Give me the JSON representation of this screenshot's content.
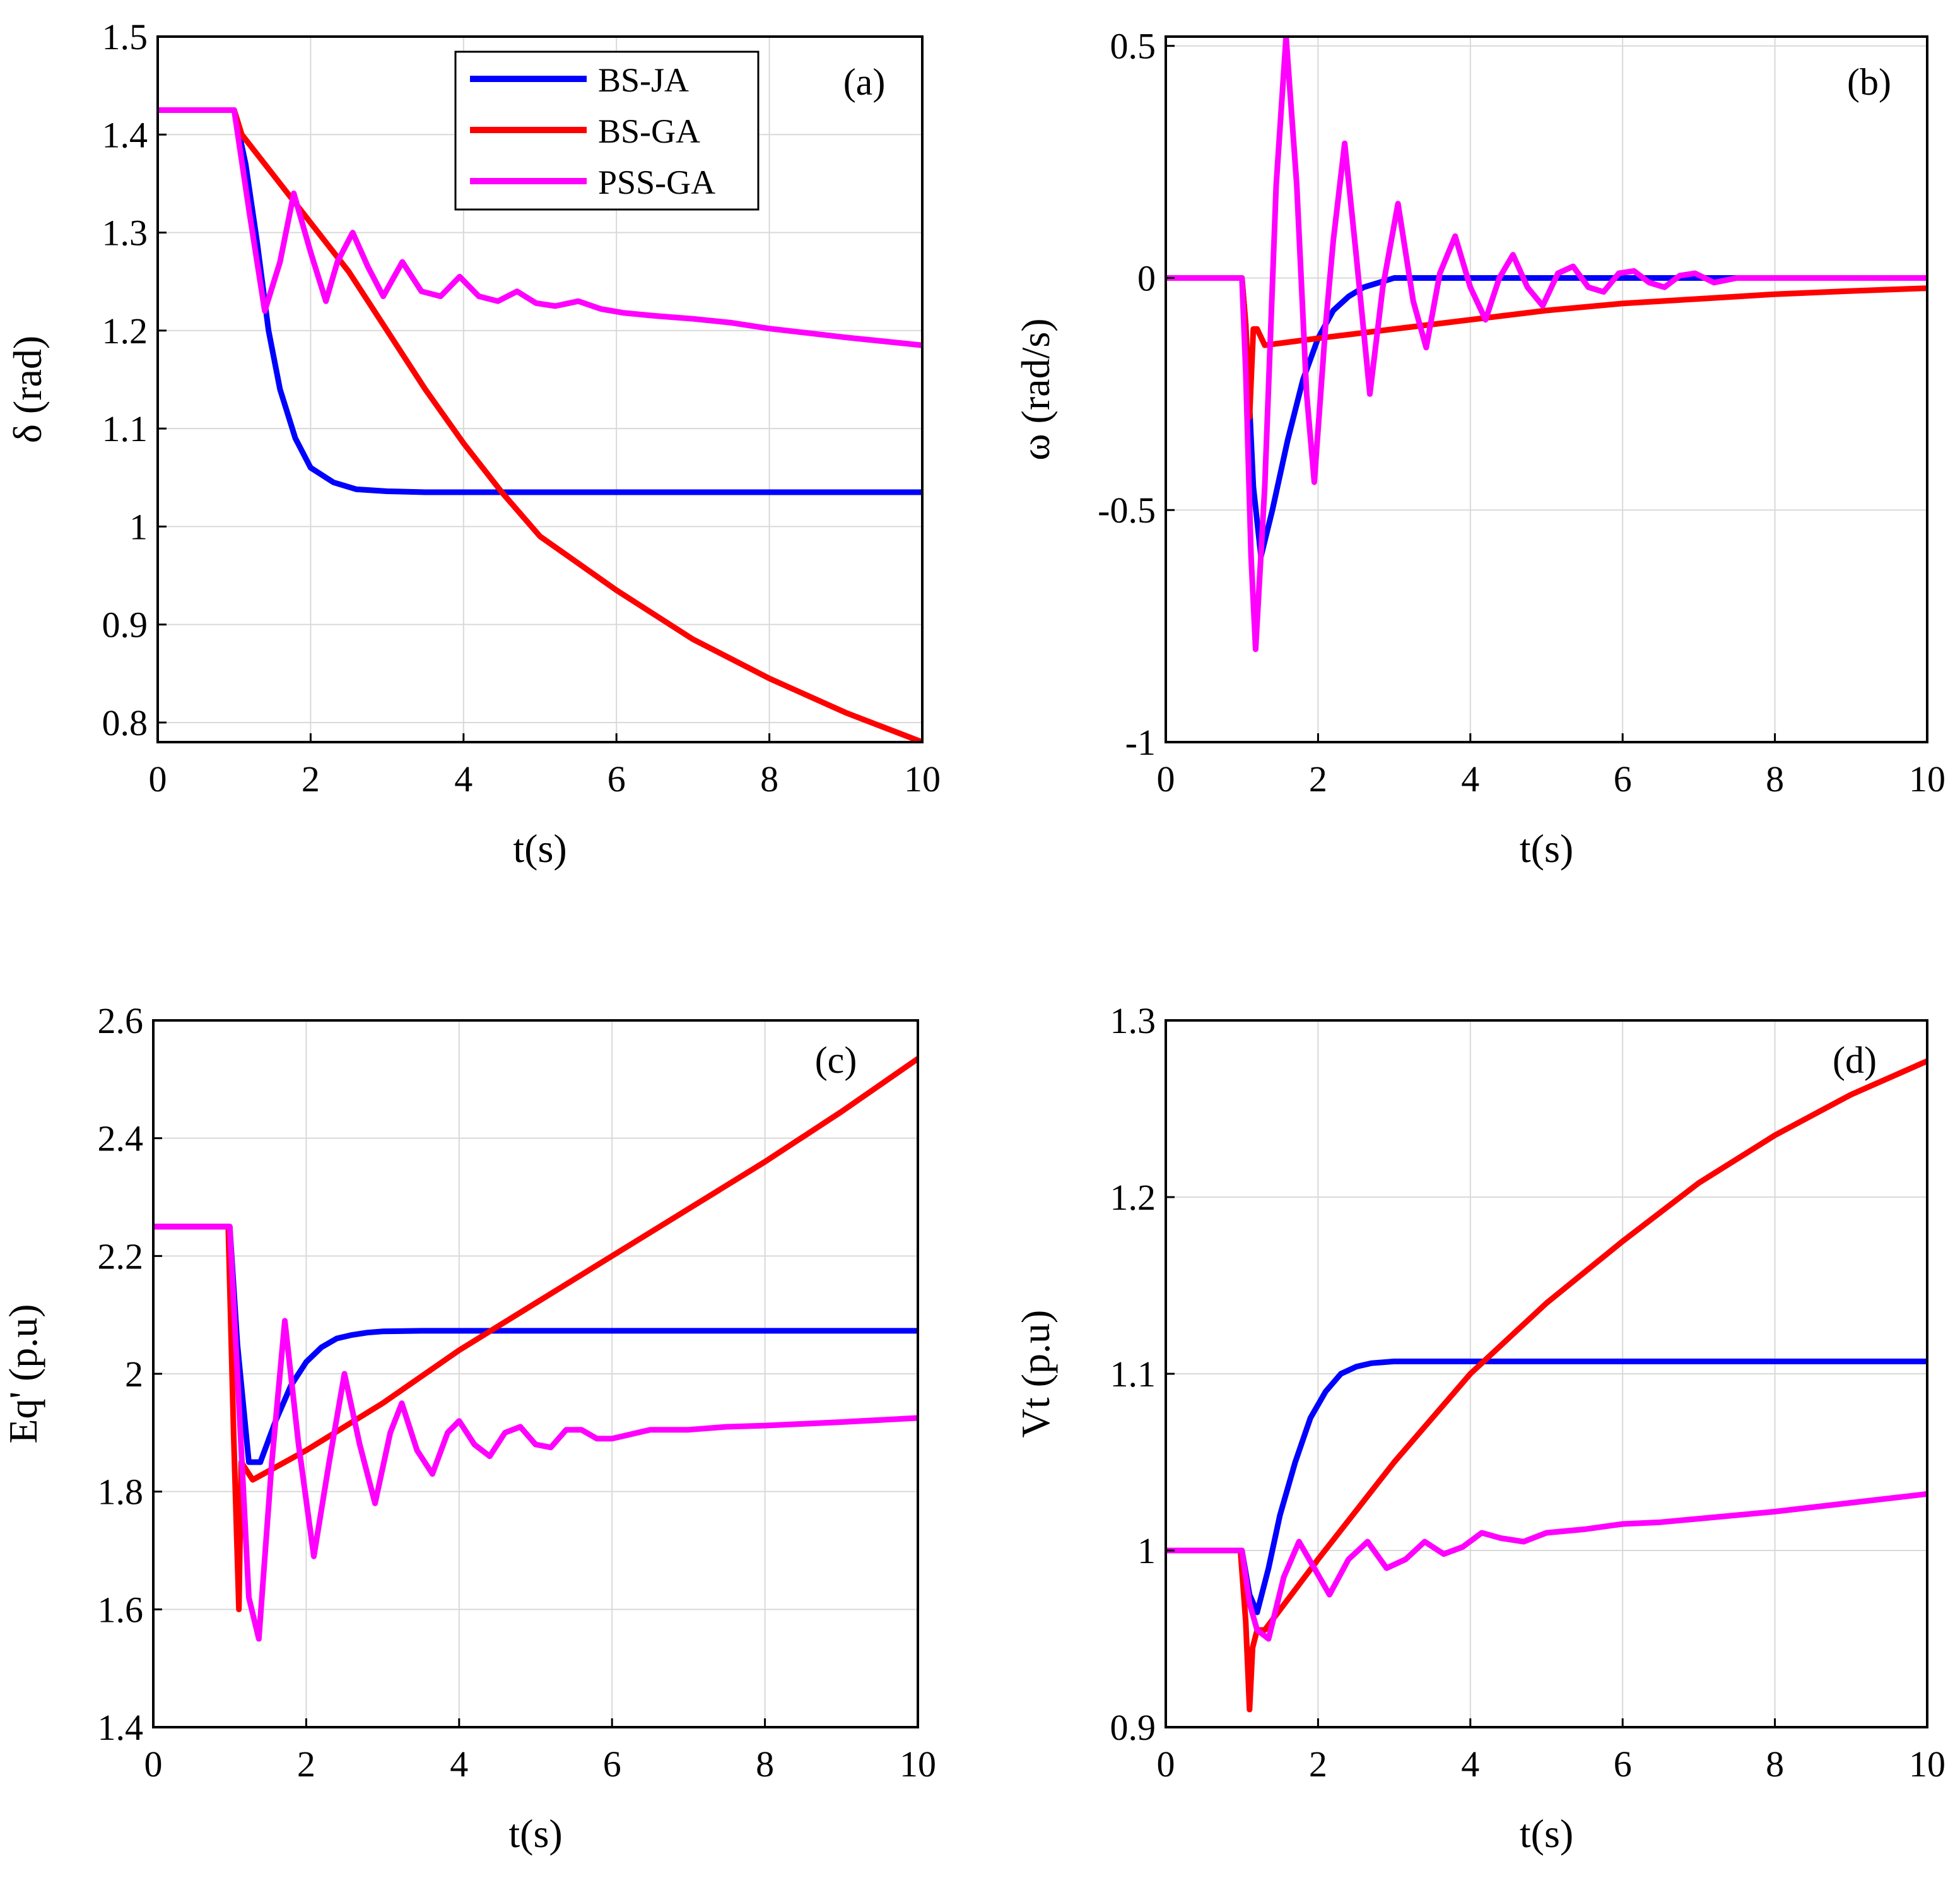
{
  "figure": {
    "legend_placement": "top-right of panel (a)"
  },
  "series_meta": [
    {
      "key": "bsja",
      "name": "BS-JA",
      "color": "#0000ff"
    },
    {
      "key": "bsga",
      "name": "BS-GA",
      "color": "#ff0000"
    },
    {
      "key": "pssga",
      "name": "PSS-GA",
      "color": "#ff00ff"
    }
  ],
  "chart_data": [
    {
      "type": "line",
      "panel": "(a)",
      "title": "",
      "xlabel": "t(s)",
      "ylabel": "δ (rad)",
      "xlim": [
        0,
        10
      ],
      "ylim": [
        0.78,
        1.5
      ],
      "xticks": [
        "0",
        "2",
        "4",
        "6",
        "8",
        "10"
      ],
      "yticks": [
        "0.8",
        "0.9",
        "1",
        "1.1",
        "1.2",
        "1.3",
        "1.4",
        "1.5"
      ],
      "ytick_values": [
        0.8,
        0.9,
        1.0,
        1.1,
        1.2,
        1.3,
        1.4,
        1.5
      ],
      "grid": true,
      "series": [
        {
          "name": "BS-JA",
          "color": "#0000ff",
          "x": [
            0,
            1.0,
            1.15,
            1.3,
            1.45,
            1.6,
            1.8,
            2.0,
            2.3,
            2.6,
            3.0,
            3.5,
            4.0,
            5.0,
            10
          ],
          "y": [
            1.425,
            1.425,
            1.37,
            1.29,
            1.2,
            1.14,
            1.09,
            1.06,
            1.045,
            1.038,
            1.036,
            1.035,
            1.035,
            1.035,
            1.035
          ]
        },
        {
          "name": "BS-GA",
          "color": "#ff0000",
          "x": [
            0,
            1.0,
            1.1,
            1.5,
            2.0,
            2.5,
            3.0,
            3.5,
            4.0,
            4.5,
            5.0,
            6.0,
            7.0,
            8.0,
            9.0,
            10
          ],
          "y": [
            1.425,
            1.425,
            1.4,
            1.36,
            1.31,
            1.26,
            1.2,
            1.14,
            1.085,
            1.035,
            0.99,
            0.935,
            0.885,
            0.845,
            0.81,
            0.78
          ]
        },
        {
          "name": "PSS-GA",
          "color": "#ff00ff",
          "x": [
            0,
            1.0,
            1.2,
            1.4,
            1.6,
            1.78,
            2.0,
            2.2,
            2.35,
            2.55,
            2.75,
            2.95,
            3.2,
            3.45,
            3.7,
            3.95,
            4.2,
            4.45,
            4.7,
            4.95,
            5.2,
            5.5,
            5.8,
            6.1,
            6.5,
            7.0,
            7.5,
            8.0,
            9.0,
            10
          ],
          "y": [
            1.425,
            1.425,
            1.32,
            1.22,
            1.27,
            1.34,
            1.28,
            1.23,
            1.27,
            1.3,
            1.265,
            1.235,
            1.27,
            1.24,
            1.235,
            1.255,
            1.235,
            1.23,
            1.24,
            1.228,
            1.225,
            1.23,
            1.222,
            1.218,
            1.215,
            1.212,
            1.208,
            1.202,
            1.193,
            1.185
          ]
        }
      ]
    },
    {
      "type": "line",
      "panel": "(b)",
      "title": "",
      "xlabel": "t(s)",
      "ylabel": "ω (rad/s)",
      "xlim": [
        0,
        10
      ],
      "ylim": [
        -1,
        0.52
      ],
      "xticks": [
        "0",
        "2",
        "4",
        "6",
        "8",
        "10"
      ],
      "yticks": [
        "-1",
        "-0.5",
        "0",
        "0.5"
      ],
      "ytick_values": [
        -1,
        -0.5,
        0,
        0.5
      ],
      "grid": true,
      "series": [
        {
          "name": "BS-JA",
          "color": "#0000ff",
          "x": [
            0,
            1.0,
            1.05,
            1.15,
            1.25,
            1.4,
            1.6,
            1.8,
            2.0,
            2.2,
            2.4,
            2.6,
            2.8,
            3.0,
            3.5,
            10
          ],
          "y": [
            0,
            0,
            -0.1,
            -0.45,
            -0.6,
            -0.5,
            -0.35,
            -0.22,
            -0.13,
            -0.07,
            -0.04,
            -0.02,
            -0.01,
            0,
            0,
            0
          ]
        },
        {
          "name": "BS-GA",
          "color": "#ff0000",
          "x": [
            0,
            1.0,
            1.05,
            1.1,
            1.15,
            1.2,
            1.3,
            2.0,
            3.0,
            4.0,
            5.0,
            6.0,
            7.0,
            8.0,
            9.0,
            10
          ],
          "y": [
            0,
            0,
            -0.1,
            -0.3,
            -0.11,
            -0.11,
            -0.145,
            -0.13,
            -0.11,
            -0.09,
            -0.07,
            -0.055,
            -0.045,
            -0.035,
            -0.028,
            -0.022
          ]
        },
        {
          "name": "PSS-GA",
          "color": "#ff00ff",
          "x": [
            0,
            1.0,
            1.05,
            1.12,
            1.18,
            1.3,
            1.45,
            1.58,
            1.72,
            1.85,
            1.95,
            2.1,
            2.2,
            2.35,
            2.5,
            2.68,
            2.85,
            3.05,
            3.25,
            3.42,
            3.6,
            3.8,
            4.0,
            4.2,
            4.38,
            4.56,
            4.75,
            4.95,
            5.15,
            5.35,
            5.55,
            5.75,
            5.95,
            6.15,
            6.35,
            6.55,
            6.75,
            6.95,
            7.2,
            7.5,
            8.0,
            10
          ],
          "y": [
            0,
            0,
            -0.2,
            -0.6,
            -0.8,
            -0.45,
            0.2,
            0.52,
            0.2,
            -0.25,
            -0.44,
            -0.1,
            0.08,
            0.29,
            0.05,
            -0.25,
            -0.02,
            0.16,
            -0.05,
            -0.15,
            0.01,
            0.09,
            -0.02,
            -0.09,
            0.0,
            0.05,
            -0.02,
            -0.06,
            0.01,
            0.025,
            -0.02,
            -0.03,
            0.01,
            0.015,
            -0.01,
            -0.02,
            0.005,
            0.01,
            -0.01,
            0.0,
            0.0,
            0.0
          ]
        }
      ]
    },
    {
      "type": "line",
      "panel": "(c)",
      "title": "",
      "xlabel": "t(s)",
      "ylabel": "Eq' (p.u)",
      "xlim": [
        0,
        10
      ],
      "ylim": [
        1.4,
        2.6
      ],
      "xticks": [
        "0",
        "2",
        "4",
        "6",
        "8",
        "10"
      ],
      "yticks": [
        "1.4",
        "1.6",
        "1.8",
        "2",
        "2.2",
        "2.4",
        "2.6"
      ],
      "ytick_values": [
        1.4,
        1.6,
        1.8,
        2.0,
        2.2,
        2.4,
        2.6
      ],
      "grid": true,
      "series": [
        {
          "name": "BS-JA",
          "color": "#0000ff",
          "x": [
            0,
            1.0,
            1.1,
            1.25,
            1.4,
            1.6,
            1.8,
            2.0,
            2.2,
            2.4,
            2.6,
            2.8,
            3.0,
            3.5,
            10
          ],
          "y": [
            2.25,
            2.25,
            2.05,
            1.85,
            1.85,
            1.92,
            1.98,
            2.02,
            2.045,
            2.06,
            2.066,
            2.07,
            2.072,
            2.073,
            2.073
          ]
        },
        {
          "name": "BS-GA",
          "color": "#ff0000",
          "x": [
            0,
            0.98,
            1.05,
            1.12,
            1.15,
            1.25,
            1.3,
            2.0,
            3.0,
            4.0,
            5.0,
            6.0,
            7.0,
            8.0,
            9.0,
            10
          ],
          "y": [
            2.25,
            2.25,
            1.9,
            1.6,
            1.85,
            1.83,
            1.82,
            1.87,
            1.95,
            2.04,
            2.12,
            2.2,
            2.28,
            2.36,
            2.445,
            2.535
          ]
        },
        {
          "name": "PSS-GA",
          "color": "#ff00ff",
          "x": [
            0,
            1.0,
            1.12,
            1.25,
            1.38,
            1.55,
            1.72,
            1.9,
            2.1,
            2.3,
            2.5,
            2.7,
            2.9,
            3.1,
            3.25,
            3.45,
            3.65,
            3.85,
            4.0,
            4.2,
            4.4,
            4.6,
            4.8,
            5.0,
            5.2,
            5.4,
            5.6,
            5.8,
            6.0,
            6.5,
            7.0,
            7.5,
            8.0,
            9.0,
            10
          ],
          "y": [
            2.25,
            2.25,
            1.95,
            1.62,
            1.55,
            1.85,
            2.09,
            1.88,
            1.69,
            1.85,
            2.0,
            1.88,
            1.78,
            1.9,
            1.95,
            1.87,
            1.83,
            1.9,
            1.92,
            1.88,
            1.86,
            1.9,
            1.91,
            1.88,
            1.875,
            1.905,
            1.905,
            1.89,
            1.89,
            1.905,
            1.905,
            1.91,
            1.912,
            1.918,
            1.925
          ]
        }
      ]
    },
    {
      "type": "line",
      "panel": "(d)",
      "title": "",
      "xlabel": "t(s)",
      "ylabel": "Vt (p.u)",
      "xlim": [
        0,
        10
      ],
      "ylim": [
        0.9,
        1.3
      ],
      "xticks": [
        "0",
        "2",
        "4",
        "6",
        "8",
        "10"
      ],
      "yticks": [
        "0.9",
        "1",
        "1.1",
        "1.2",
        "1.3"
      ],
      "ytick_values": [
        0.9,
        1.0,
        1.1,
        1.2,
        1.3
      ],
      "grid": true,
      "series": [
        {
          "name": "BS-JA",
          "color": "#0000ff",
          "x": [
            0,
            1.0,
            1.1,
            1.2,
            1.35,
            1.5,
            1.7,
            1.9,
            2.1,
            2.3,
            2.5,
            2.7,
            3.0,
            3.5,
            10
          ],
          "y": [
            1.0,
            1.0,
            0.975,
            0.965,
            0.99,
            1.02,
            1.05,
            1.075,
            1.09,
            1.1,
            1.104,
            1.106,
            1.107,
            1.107,
            1.107
          ]
        },
        {
          "name": "BS-GA",
          "color": "#ff0000",
          "x": [
            0,
            0.98,
            1.05,
            1.1,
            1.14,
            1.2,
            1.3,
            2.0,
            3.0,
            4.0,
            5.0,
            6.0,
            7.0,
            8.0,
            9.0,
            10
          ],
          "y": [
            1.0,
            1.0,
            0.96,
            0.91,
            0.945,
            0.955,
            0.955,
            0.995,
            1.05,
            1.1,
            1.14,
            1.175,
            1.208,
            1.235,
            1.258,
            1.277
          ]
        },
        {
          "name": "PSS-GA",
          "color": "#ff00ff",
          "x": [
            0,
            1.0,
            1.1,
            1.2,
            1.35,
            1.55,
            1.75,
            1.95,
            2.15,
            2.4,
            2.65,
            2.9,
            3.15,
            3.4,
            3.65,
            3.9,
            4.15,
            4.4,
            4.7,
            5.0,
            5.5,
            6.0,
            6.5,
            7.0,
            8.0,
            9.0,
            10
          ],
          "y": [
            1.0,
            1.0,
            0.97,
            0.955,
            0.95,
            0.985,
            1.005,
            0.99,
            0.975,
            0.995,
            1.005,
            0.99,
            0.995,
            1.005,
            0.998,
            1.002,
            1.01,
            1.007,
            1.005,
            1.01,
            1.012,
            1.015,
            1.016,
            1.018,
            1.022,
            1.027,
            1.032
          ]
        }
      ]
    }
  ]
}
